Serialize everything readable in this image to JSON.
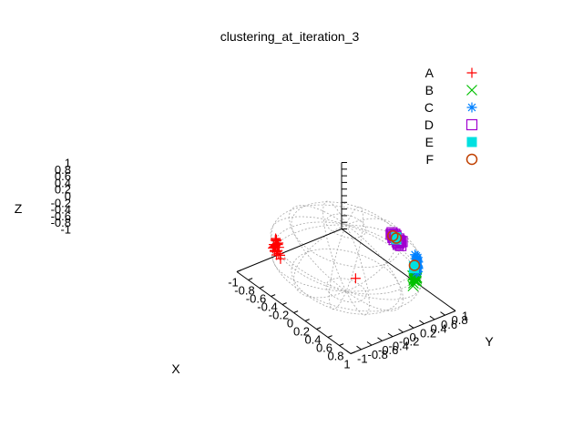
{
  "chart_data": {
    "type": "scatter",
    "title": "clustering_at_iteration_3",
    "xlabel": "X",
    "ylabel": "Y",
    "zlabel": "Z",
    "xlim": [
      -1,
      1
    ],
    "ylim": [
      -1,
      1
    ],
    "zlim": [
      -1,
      1
    ],
    "grid": "unit-sphere wireframe",
    "legend_position": "top-right",
    "x_ticks": [
      "-1",
      "-0.8",
      "-0.6",
      "-0.4",
      "-0.2",
      "0",
      "0.2",
      "0.4",
      "0.6",
      "0.8",
      "1"
    ],
    "y_ticks": [
      "-1",
      "-0.8",
      "-0.6",
      "-0.4",
      "-0.2",
      "0",
      "0.2",
      "0.4",
      "0.6",
      "0.8",
      "1"
    ],
    "z_ticks": [
      "1",
      "0.8",
      "0.6",
      "0.4",
      "0.2",
      "0",
      "-0.2",
      "-0.4",
      "-0.6",
      "-0.8",
      "-1"
    ],
    "series": [
      {
        "name": "A",
        "marker": "plus",
        "color": "#ff0000",
        "points": [
          [
            -0.52,
            -0.78,
            0.18
          ],
          [
            -0.55,
            -0.72,
            0.22
          ],
          [
            -0.48,
            -0.8,
            0.12
          ],
          [
            -0.6,
            -0.7,
            0.25
          ],
          [
            -0.45,
            -0.82,
            0.2
          ],
          [
            -0.58,
            -0.75,
            0.1
          ],
          [
            -0.5,
            -0.76,
            0.28
          ],
          [
            -0.62,
            -0.66,
            0.18
          ],
          [
            -0.53,
            -0.79,
            0.06
          ],
          [
            -0.47,
            -0.77,
            0.24
          ],
          [
            -0.57,
            -0.73,
            0.15
          ],
          [
            -0.49,
            -0.83,
            0.16
          ],
          [
            -0.65,
            -0.64,
            0.2
          ],
          [
            -0.51,
            -0.74,
            0.3
          ],
          [
            -0.55,
            -0.8,
            0.14
          ],
          [
            -0.44,
            -0.85,
            0.1
          ],
          [
            -0.59,
            -0.69,
            0.27
          ],
          [
            -0.54,
            -0.77,
            0.19
          ],
          [
            -0.46,
            -0.79,
            0.08
          ],
          [
            -0.61,
            -0.72,
            0.12
          ],
          [
            -0.35,
            -0.88,
            0.22
          ],
          [
            -0.38,
            -0.84,
            0.05
          ],
          [
            0.35,
            -0.2,
            -0.05
          ]
        ]
      },
      {
        "name": "B",
        "marker": "cross",
        "color": "#00c000",
        "points": [
          [
            0.8,
            0.42,
            0.1
          ],
          [
            0.78,
            0.48,
            0.05
          ],
          [
            0.84,
            0.38,
            0.12
          ],
          [
            0.76,
            0.5,
            0.15
          ],
          [
            0.82,
            0.45,
            0.02
          ],
          [
            0.86,
            0.35,
            0.08
          ],
          [
            0.79,
            0.44,
            0.18
          ],
          [
            0.74,
            0.52,
            0.06
          ],
          [
            0.83,
            0.4,
            0.14
          ],
          [
            0.81,
            0.47,
            0.11
          ],
          [
            0.77,
            0.46,
            0.0
          ],
          [
            0.85,
            0.42,
            0.16
          ],
          [
            0.72,
            0.55,
            0.09
          ],
          [
            0.8,
            0.4,
            0.2
          ],
          [
            0.88,
            0.32,
            0.04
          ],
          [
            0.75,
            0.49,
            0.13
          ],
          [
            0.83,
            0.43,
            0.07
          ]
        ]
      },
      {
        "name": "C",
        "marker": "star",
        "color": "#0080ff",
        "points": [
          [
            0.58,
            0.72,
            0.05
          ],
          [
            0.62,
            0.68,
            0.1
          ],
          [
            0.55,
            0.75,
            0.0
          ],
          [
            0.65,
            0.66,
            0.08
          ],
          [
            0.52,
            0.78,
            0.12
          ],
          [
            0.6,
            0.7,
            -0.02
          ],
          [
            0.66,
            0.62,
            0.14
          ],
          [
            0.5,
            0.8,
            0.06
          ],
          [
            0.57,
            0.74,
            0.15
          ],
          [
            0.63,
            0.69,
            0.02
          ],
          [
            0.48,
            0.82,
            0.04
          ],
          [
            0.68,
            0.6,
            0.09
          ],
          [
            0.54,
            0.77,
            0.11
          ],
          [
            0.61,
            0.71,
            0.18
          ],
          [
            0.59,
            0.73,
            -0.01
          ],
          [
            0.45,
            0.85,
            0.07
          ],
          [
            0.4,
            0.88,
            0.03
          ],
          [
            0.64,
            0.67,
            0.12
          ],
          [
            0.56,
            0.76,
            0.08
          ],
          [
            0.7,
            0.58,
            0.05
          ],
          [
            0.53,
            0.79,
            0.16
          ],
          [
            0.67,
            0.64,
            0.01
          ]
        ]
      },
      {
        "name": "D",
        "marker": "square",
        "color": "#a000d0",
        "points": [
          [
            0.4,
            0.52,
            0.76
          ],
          [
            0.36,
            0.55,
            0.75
          ],
          [
            0.44,
            0.5,
            0.74
          ],
          [
            0.38,
            0.48,
            0.78
          ],
          [
            0.46,
            0.54,
            0.71
          ],
          [
            0.34,
            0.52,
            0.78
          ],
          [
            0.42,
            0.46,
            0.78
          ],
          [
            0.48,
            0.49,
            0.73
          ],
          [
            0.32,
            0.58,
            0.74
          ],
          [
            0.41,
            0.56,
            0.72
          ],
          [
            0.5,
            0.45,
            0.74
          ],
          [
            0.37,
            0.5,
            0.79
          ],
          [
            0.45,
            0.58,
            0.68
          ],
          [
            0.3,
            0.55,
            0.78
          ],
          [
            0.43,
            0.52,
            0.73
          ],
          [
            0.39,
            0.53,
            0.75
          ],
          [
            0.47,
            0.47,
            0.75
          ],
          [
            0.35,
            0.57,
            0.74
          ],
          [
            0.44,
            0.55,
            0.71
          ],
          [
            0.52,
            0.48,
            0.71
          ],
          [
            0.33,
            0.5,
            0.8
          ]
        ]
      },
      {
        "name": "E",
        "marker": "filled-square",
        "color": "#00e0e0",
        "points": [
          [
            0.4,
            0.52,
            0.76
          ],
          [
            0.42,
            0.5,
            0.76
          ],
          [
            0.38,
            0.54,
            0.75
          ],
          [
            0.62,
            0.62,
            0.12
          ],
          [
            0.64,
            0.6,
            0.1
          ]
        ]
      },
      {
        "name": "F",
        "marker": "circle",
        "color": "#c04000",
        "points": [
          [
            0.4,
            0.52,
            0.76
          ],
          [
            0.36,
            0.5,
            0.79
          ],
          [
            0.62,
            0.63,
            0.14
          ]
        ]
      }
    ]
  }
}
